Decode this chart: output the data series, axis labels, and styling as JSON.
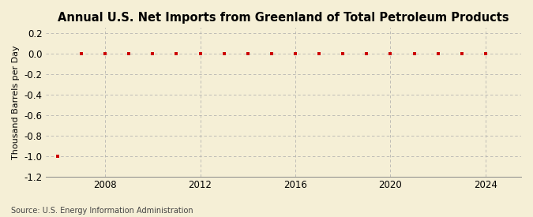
{
  "title": "Annual U.S. Net Imports from Greenland of Total Petroleum Products",
  "ylabel": "Thousand Barrels per Day",
  "source": "Source: U.S. Energy Information Administration",
  "background_color": "#f5efd6",
  "years": [
    2006,
    2007,
    2008,
    2009,
    2010,
    2011,
    2012,
    2013,
    2014,
    2015,
    2016,
    2017,
    2018,
    2019,
    2020,
    2021,
    2022,
    2023,
    2024
  ],
  "values": [
    -1.0,
    0.0,
    0.0,
    0.0,
    0.0,
    0.0,
    0.0,
    0.0,
    0.0,
    0.0,
    0.0,
    0.0,
    0.0,
    0.0,
    0.0,
    0.0,
    0.0,
    0.0,
    0.0
  ],
  "marker_color": "#cc0000",
  "grid_color": "#aaaaaa",
  "xlim": [
    2005.5,
    2025.5
  ],
  "ylim": [
    -1.2,
    0.25
  ],
  "yticks": [
    0.2,
    0.0,
    -0.2,
    -0.4,
    -0.6,
    -0.8,
    -1.0,
    -1.2
  ],
  "xticks": [
    2008,
    2012,
    2016,
    2020,
    2024
  ],
  "vline_positions": [
    2008,
    2012,
    2016,
    2020,
    2024
  ],
  "title_fontsize": 10.5,
  "ylabel_fontsize": 8,
  "tick_fontsize": 8.5
}
